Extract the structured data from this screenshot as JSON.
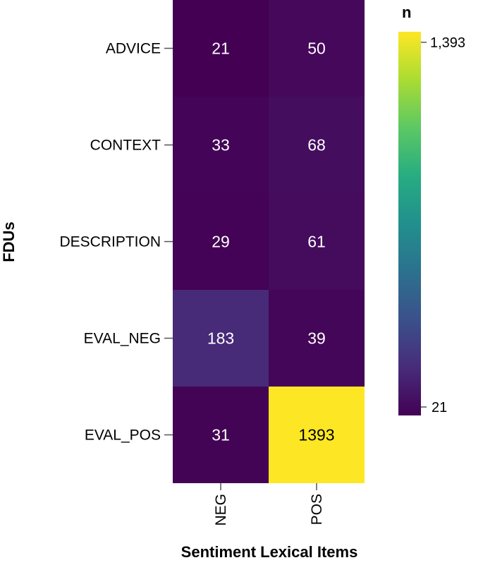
{
  "chart_data": {
    "type": "heatmap",
    "xlabel": "Sentiment Lexical Items",
    "ylabel": "FDUs",
    "x_categories": [
      "NEG",
      "POS"
    ],
    "y_categories": [
      "ADVICE",
      "CONTEXT",
      "DESCRIPTION",
      "EVAL_NEG",
      "EVAL_POS"
    ],
    "values": [
      [
        21,
        50
      ],
      [
        33,
        68
      ],
      [
        29,
        61
      ],
      [
        183,
        39
      ],
      [
        31,
        1393
      ]
    ],
    "colorscale": "viridis",
    "colorbar": {
      "title": "n",
      "min": 21,
      "max": 1393,
      "min_label": "21",
      "max_label": "1,393"
    }
  }
}
